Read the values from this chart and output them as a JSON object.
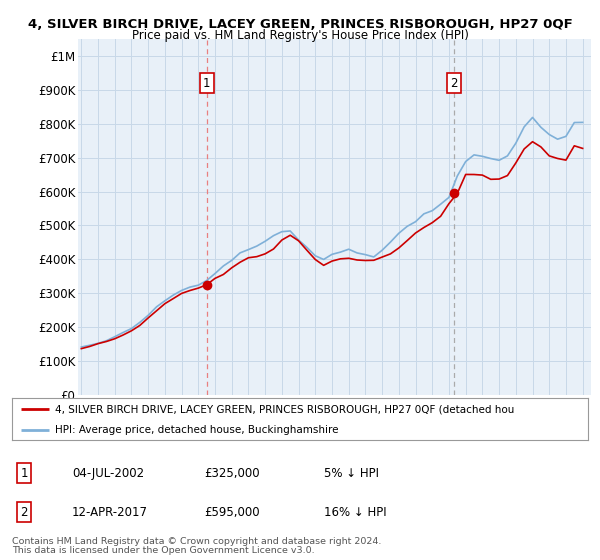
{
  "title": "4, SILVER BIRCH DRIVE, LACEY GREEN, PRINCES RISBOROUGH, HP27 0QF",
  "subtitle": "Price paid vs. HM Land Registry's House Price Index (HPI)",
  "ylabel_ticks": [
    "£0",
    "£100K",
    "£200K",
    "£300K",
    "£400K",
    "£500K",
    "£600K",
    "£700K",
    "£800K",
    "£900K",
    "£1M"
  ],
  "ytick_vals": [
    0,
    100000,
    200000,
    300000,
    400000,
    500000,
    600000,
    700000,
    800000,
    900000,
    1000000
  ],
  "ylim": [
    0,
    1050000
  ],
  "xlim_start": 1994.8,
  "xlim_end": 2025.5,
  "sale1_x": 2002.5,
  "sale1_y": 325000,
  "sale1_label": "1",
  "sale1_date": "04-JUL-2002",
  "sale1_price": "£325,000",
  "sale1_hpi": "5% ↓ HPI",
  "sale1_dashed_color": "#e88080",
  "sale2_x": 2017.28,
  "sale2_y": 595000,
  "sale2_label": "2",
  "sale2_date": "12-APR-2017",
  "sale2_price": "£595,000",
  "sale2_hpi": "16% ↓ HPI",
  "sale2_dashed_color": "#aaaaaa",
  "hpi_color": "#7fb0d8",
  "sale_color": "#cc0000",
  "chart_bg": "#e8f0f8",
  "legend_property_text": "4, SILVER BIRCH DRIVE, LACEY GREEN, PRINCES RISBOROUGH, HP27 0QF (detached hou",
  "legend_hpi_text": "HPI: Average price, detached house, Buckinghamshire",
  "footer1": "Contains HM Land Registry data © Crown copyright and database right 2024.",
  "footer2": "This data is licensed under the Open Government Licence v3.0.",
  "grid_color": "#c8d8e8",
  "background_color": "#ffffff"
}
